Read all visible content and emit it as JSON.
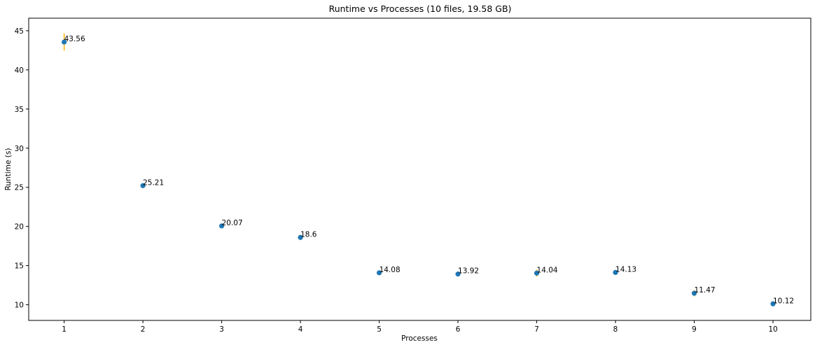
{
  "chart_data": {
    "type": "scatter",
    "title": "Runtime vs Processes (10 files, 19.58 GB)",
    "xlabel": "Processes",
    "ylabel": "Runtime (s)",
    "x": [
      1,
      2,
      3,
      4,
      5,
      6,
      7,
      8,
      9,
      10
    ],
    "y": [
      43.56,
      25.21,
      20.07,
      18.6,
      14.08,
      13.92,
      14.04,
      14.13,
      11.47,
      10.12
    ],
    "yerr": [
      1.1,
      0.3,
      0.3,
      0.35,
      0.2,
      0.25,
      0.45,
      0.2,
      0.4,
      0.15
    ],
    "data_labels": [
      "43.56",
      "25.21",
      "20.07",
      "18.6",
      "14.08",
      "13.92",
      "14.04",
      "14.13",
      "11.47",
      "10.12"
    ],
    "xticks": [
      1,
      2,
      3,
      4,
      5,
      6,
      7,
      8,
      9,
      10
    ],
    "yticks": [
      10,
      15,
      20,
      25,
      30,
      35,
      40,
      45
    ],
    "xlim": [
      0.55,
      10.48
    ],
    "ylim": [
      8.0,
      46.6
    ],
    "grid": false,
    "point_color": "#1f77b4",
    "errorbar_color": "#ffb000"
  }
}
